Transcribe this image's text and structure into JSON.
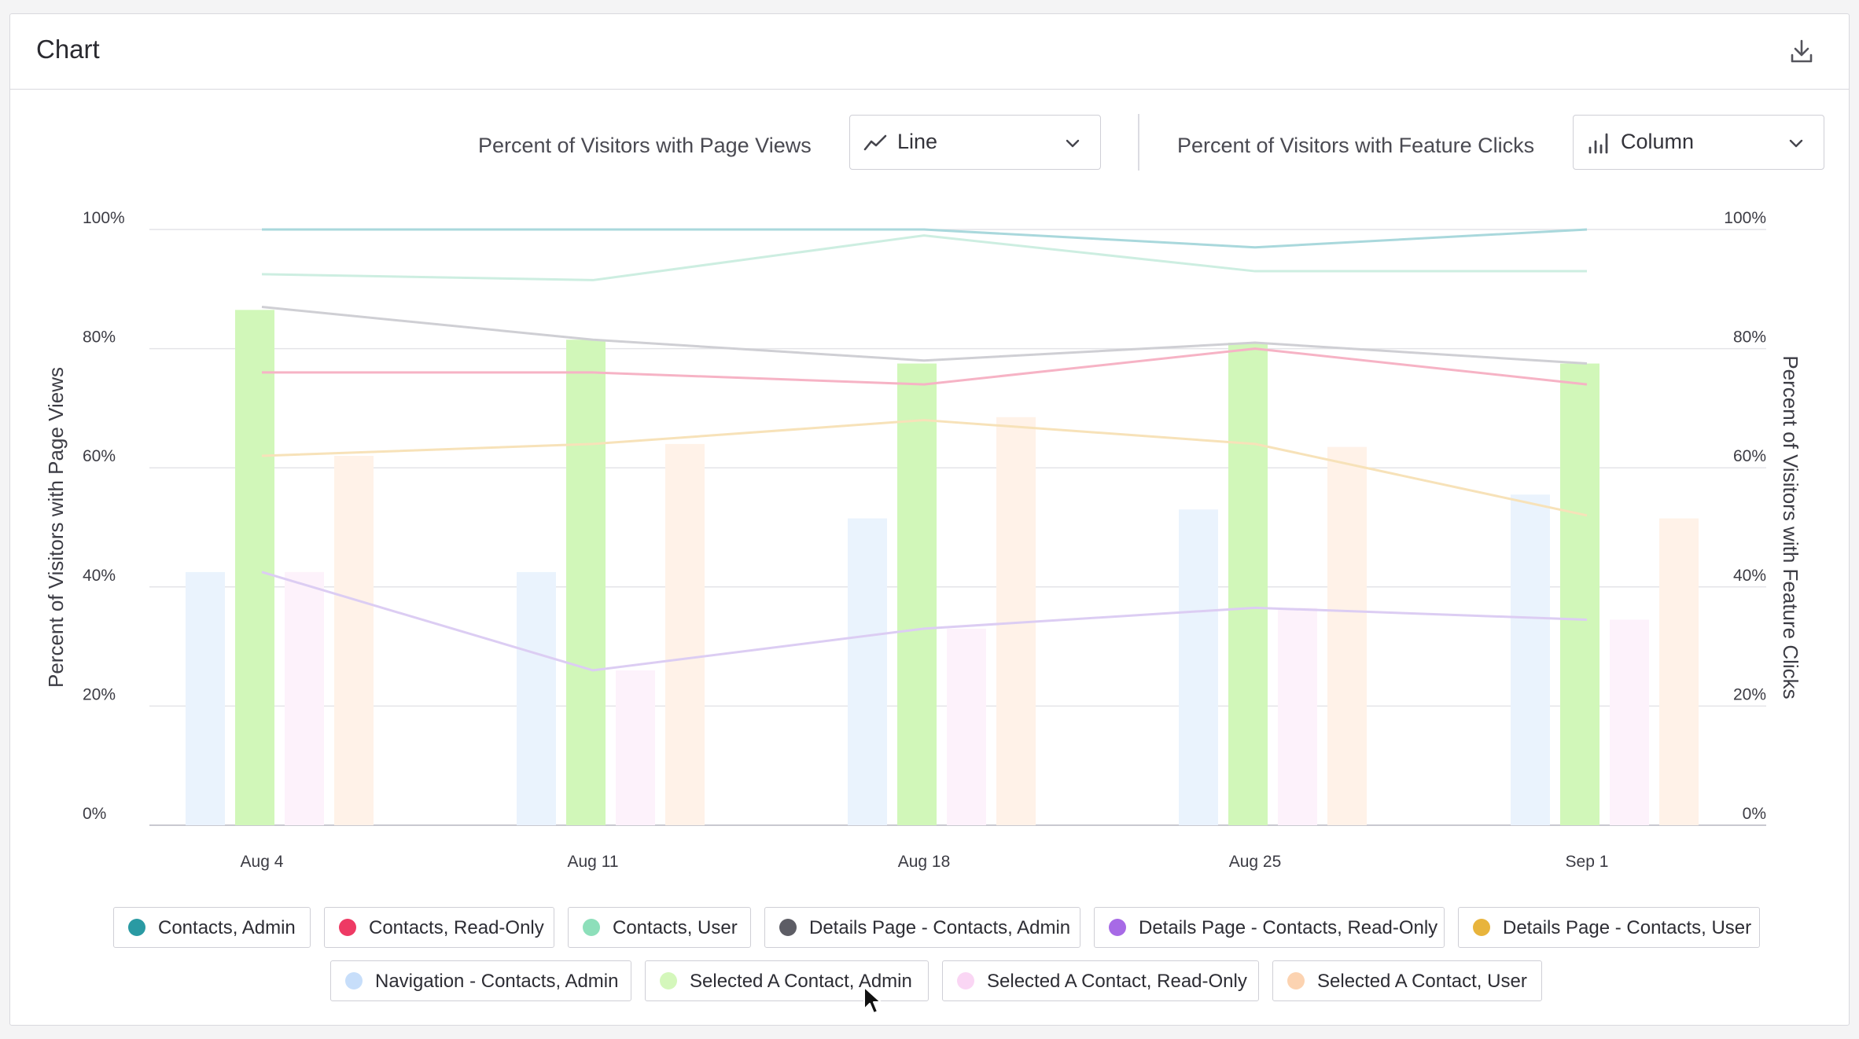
{
  "header": {
    "title": "Chart",
    "download_icon": "download-icon"
  },
  "controls": {
    "left_label": "Percent of Visitors with Page Views",
    "left_select": {
      "value": "Line",
      "icon": "line-chart-icon"
    },
    "right_label": "Percent of Visitors with Feature Clicks",
    "right_select": {
      "value": "Column",
      "icon": "column-chart-icon"
    }
  },
  "chart_data": {
    "type": "bar",
    "x": [
      "Aug 4",
      "Aug 11",
      "Aug 18",
      "Aug 25",
      "Sep 1"
    ],
    "y_left": {
      "label": "Percent of Visitors with Page Views",
      "ticks": [
        "0%",
        "20%",
        "40%",
        "60%",
        "80%",
        "100%"
      ],
      "ylim": [
        0,
        100
      ]
    },
    "y_right": {
      "label": "Percent of Visitors with Feature Clicks",
      "ticks": [
        "0%",
        "20%",
        "40%",
        "60%",
        "80%",
        "100%"
      ],
      "ylim": [
        0,
        100
      ]
    },
    "grid": true,
    "line_series": [
      {
        "name": "Contacts, Admin",
        "color": "#a9d8dc",
        "values": [
          100,
          100,
          100,
          97,
          100
        ]
      },
      {
        "name": "Contacts, Read-Only",
        "color": "#f6b3c5",
        "values": [
          76,
          76,
          74,
          80,
          74
        ]
      },
      {
        "name": "Contacts, User",
        "color": "#cdeee1",
        "values": [
          92.5,
          91.5,
          99,
          93,
          93
        ]
      },
      {
        "name": "Details Page - Contacts, Admin",
        "color": "#cfcfd4",
        "values": [
          87,
          81.5,
          78,
          81,
          77.5
        ]
      },
      {
        "name": "Details Page - Contacts, Read-Only",
        "color": "#dccdf3",
        "values": [
          42.5,
          26,
          33,
          36.5,
          34.5
        ]
      },
      {
        "name": "Details Page - Contacts, User",
        "color": "#f7e2b9",
        "values": [
          62,
          64,
          68,
          64,
          52
        ]
      }
    ],
    "bar_series": [
      {
        "name": "Navigation - Contacts, Admin",
        "color": "#eaf3fd",
        "values": [
          42.5,
          42.5,
          51.5,
          53,
          55.5
        ]
      },
      {
        "name": "Selected A Contact, Admin",
        "color": "#d1f7b9",
        "values": [
          86.5,
          81.5,
          77.5,
          81,
          77.5
        ]
      },
      {
        "name": "Selected A Contact, Read-Only",
        "color": "#fdf2fb",
        "values": [
          42.5,
          26,
          33,
          36.5,
          34.5
        ]
      },
      {
        "name": "Selected A Contact, User",
        "color": "#fff2e8",
        "values": [
          62,
          64,
          68.5,
          63.5,
          51.5
        ]
      }
    ]
  },
  "legend": [
    {
      "label": "Contacts, Admin",
      "color": "#2a9aa3"
    },
    {
      "label": "Contacts, Read-Only",
      "color": "#ee3a64"
    },
    {
      "label": "Contacts, User",
      "color": "#8ddfba"
    },
    {
      "label": "Details Page - Contacts, Admin",
      "color": "#5d5d65"
    },
    {
      "label": "Details Page - Contacts, Read-Only",
      "color": "#a76ae6"
    },
    {
      "label": "Details Page - Contacts, User",
      "color": "#e8b43c"
    },
    {
      "label": "Navigation - Contacts, Admin",
      "color": "#c7defa"
    },
    {
      "label": "Selected A Contact, Admin",
      "color": "#d4f7bb"
    },
    {
      "label": "Selected A Contact, Read-Only",
      "color": "#fad6f4"
    },
    {
      "label": "Selected A Contact, User",
      "color": "#fcd3b1"
    }
  ]
}
